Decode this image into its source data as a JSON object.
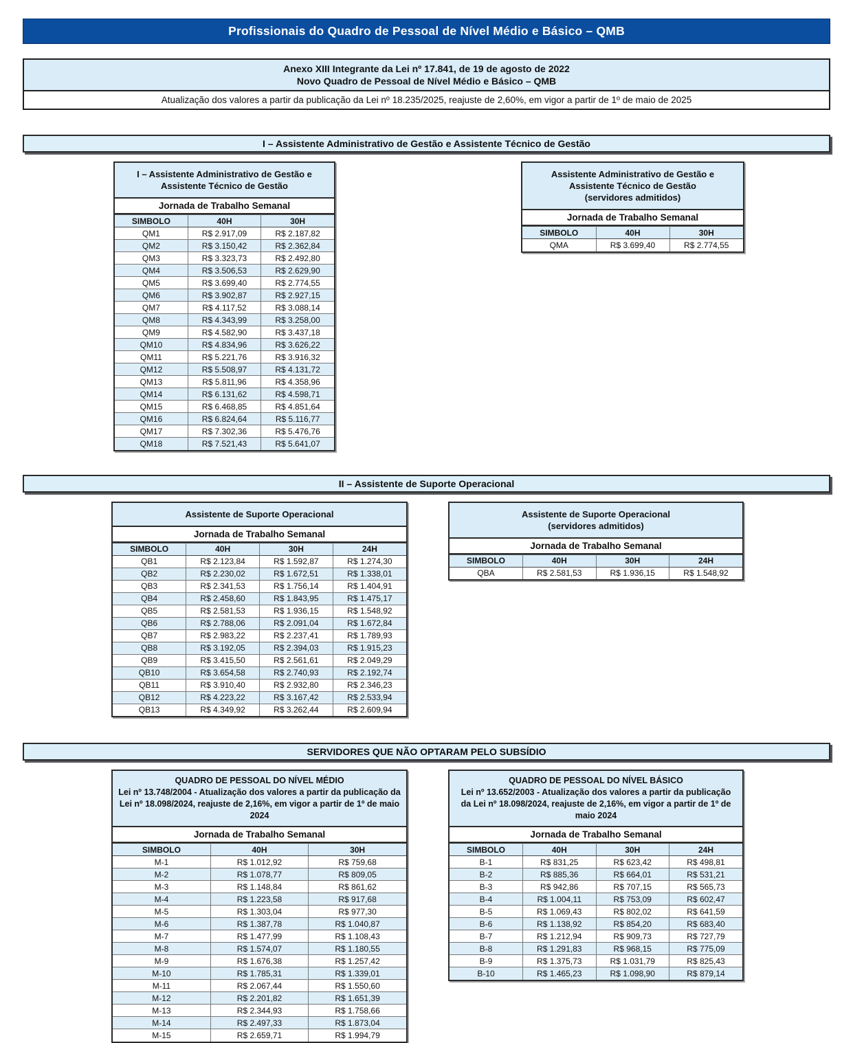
{
  "banner": {
    "title": "Profissionais do Quadro de Pessoal de Nível Médio e Básico – QMB"
  },
  "anexo": {
    "heading": "Anexo XIII Integrante da Lei nº 17.841, de 19 de agosto de 2022\nNovo Quadro de Pessoal de Nível Médio e Básico – QMB",
    "note": "Atualização dos valores a partir da publicação da Lei nº 18.235/2025, reajuste de 2,60%, em vigor a partir de 1º de maio de 2025"
  },
  "colors": {
    "banner_blue": "#0b4ea0",
    "light_blue": "#d9ecf8",
    "stripe_blue": "#ddeef8"
  },
  "section1": {
    "heading": "I – Assistente Administrativo de Gestão e Assistente Técnico de Gestão",
    "left_table": {
      "title": "I – Assistente Administrativo de Gestão e\nAssistente Técnico de Gestão",
      "subheader": "Jornada de Trabalho Semanal",
      "columns": [
        "SIMBOLO",
        "40H",
        "30H"
      ],
      "rows": [
        [
          "QM1",
          "R$ 2.917,09",
          "R$ 2.187,82"
        ],
        [
          "QM2",
          "R$ 3.150,42",
          "R$ 2.362,84"
        ],
        [
          "QM3",
          "R$ 3.323,73",
          "R$ 2.492,80"
        ],
        [
          "QM4",
          "R$ 3.506,53",
          "R$ 2.629,90"
        ],
        [
          "QM5",
          "R$ 3.699,40",
          "R$ 2.774,55"
        ],
        [
          "QM6",
          "R$ 3.902,87",
          "R$ 2.927,15"
        ],
        [
          "QM7",
          "R$ 4.117,52",
          "R$ 3.088,14"
        ],
        [
          "QM8",
          "R$ 4.343,99",
          "R$ 3.258,00"
        ],
        [
          "QM9",
          "R$ 4.582,90",
          "R$ 3.437,18"
        ],
        [
          "QM10",
          "R$ 4.834,96",
          "R$ 3.626,22"
        ],
        [
          "QM11",
          "R$ 5.221,76",
          "R$ 3.916,32"
        ],
        [
          "QM12",
          "R$ 5.508,97",
          "R$ 4.131,72"
        ],
        [
          "QM13",
          "R$ 5.811,96",
          "R$ 4.358,96"
        ],
        [
          "QM14",
          "R$ 6.131,62",
          "R$ 4.598,71"
        ],
        [
          "QM15",
          "R$ 6.468,85",
          "R$ 4.851,64"
        ],
        [
          "QM16",
          "R$ 6.824,64",
          "R$ 5.116,77"
        ],
        [
          "QM17",
          "R$ 7.302,36",
          "R$ 5.476,76"
        ],
        [
          "QM18",
          "R$ 7.521,43",
          "R$ 5.641,07"
        ]
      ]
    },
    "right_table": {
      "title": "Assistente Administrativo de Gestão e\nAssistente Técnico de Gestão\n(servidores admitidos)",
      "subheader": "Jornada de Trabalho Semanal",
      "columns": [
        "SIMBOLO",
        "40H",
        "30H"
      ],
      "rows": [
        [
          "QMA",
          "R$ 3.699,40",
          "R$ 2.774,55"
        ]
      ]
    }
  },
  "section2": {
    "heading": "II – Assistente de Suporte Operacional",
    "left_table": {
      "title": "Assistente de Suporte Operacional",
      "subheader": "Jornada de Trabalho Semanal",
      "columns": [
        "SIMBOLO",
        "40H",
        "30H",
        "24H"
      ],
      "rows": [
        [
          "QB1",
          "R$ 2.123,84",
          "R$ 1.592,87",
          "R$ 1.274,30"
        ],
        [
          "QB2",
          "R$ 2.230,02",
          "R$ 1.672,51",
          "R$ 1.338,01"
        ],
        [
          "QB3",
          "R$ 2.341,53",
          "R$ 1.756,14",
          "R$ 1.404,91"
        ],
        [
          "QB4",
          "R$ 2.458,60",
          "R$ 1.843,95",
          "R$ 1.475,17"
        ],
        [
          "QB5",
          "R$ 2.581,53",
          "R$ 1.936,15",
          "R$ 1.548,92"
        ],
        [
          "QB6",
          "R$ 2.788,06",
          "R$ 2.091,04",
          "R$ 1.672,84"
        ],
        [
          "QB7",
          "R$ 2.983,22",
          "R$ 2.237,41",
          "R$ 1.789,93"
        ],
        [
          "QB8",
          "R$ 3.192,05",
          "R$ 2.394,03",
          "R$ 1.915,23"
        ],
        [
          "QB9",
          "R$ 3.415,50",
          "R$ 2.561,61",
          "R$ 2.049,29"
        ],
        [
          "QB10",
          "R$ 3.654,58",
          "R$ 2.740,93",
          "R$ 2.192,74"
        ],
        [
          "QB11",
          "R$ 3.910,40",
          "R$ 2.932,80",
          "R$ 2.346,23"
        ],
        [
          "QB12",
          "R$ 4.223,22",
          "R$ 3.167,42",
          "R$ 2.533,94"
        ],
        [
          "QB13",
          "R$ 4.349,92",
          "R$ 3.262,44",
          "R$ 2.609,94"
        ]
      ]
    },
    "right_table": {
      "title": "Assistente de Suporte Operacional\n(servidores admitidos)",
      "subheader": "Jornada de Trabalho Semanal",
      "columns": [
        "SIMBOLO",
        "40H",
        "30H",
        "24H"
      ],
      "rows": [
        [
          "QBA",
          "R$ 2.581,53",
          "R$ 1.936,15",
          "R$ 1.548,92"
        ]
      ]
    }
  },
  "section3": {
    "heading": "SERVIDORES QUE NÃO OPTARAM PELO SUBSÍDIO",
    "left_table": {
      "title": "QUADRO DE PESSOAL DO NÍVEL MÉDIO\nLei nº 13.748/2004 - Atualização dos valores a partir da publicação da Lei nº 18.098/2024, reajuste de 2,16%, em vigor a partir de 1º de maio 2024",
      "subheader": "Jornada de Trabalho Semanal",
      "columns": [
        "SIMBOLO",
        "40H",
        "30H"
      ],
      "rows": [
        [
          "M-1",
          "R$ 1.012,92",
          "R$ 759,68"
        ],
        [
          "M-2",
          "R$ 1.078,77",
          "R$ 809,05"
        ],
        [
          "M-3",
          "R$ 1.148,84",
          "R$ 861,62"
        ],
        [
          "M-4",
          "R$ 1.223,58",
          "R$ 917,68"
        ],
        [
          "M-5",
          "R$ 1.303,04",
          "R$ 977,30"
        ],
        [
          "M-6",
          "R$ 1.387,78",
          "R$ 1.040,87"
        ],
        [
          "M-7",
          "R$ 1.477,99",
          "R$ 1.108,43"
        ],
        [
          "M-8",
          "R$ 1.574,07",
          "R$ 1.180,55"
        ],
        [
          "M-9",
          "R$ 1.676,38",
          "R$ 1.257,42"
        ],
        [
          "M-10",
          "R$ 1.785,31",
          "R$ 1.339,01"
        ],
        [
          "M-11",
          "R$ 2.067,44",
          "R$ 1.550,60"
        ],
        [
          "M-12",
          "R$ 2.201,82",
          "R$ 1.651,39"
        ],
        [
          "M-13",
          "R$ 2.344,93",
          "R$ 1.758,66"
        ],
        [
          "M-14",
          "R$ 2.497,33",
          "R$ 1.873,04"
        ],
        [
          "M-15",
          "R$ 2.659,71",
          "R$ 1.994,79"
        ]
      ]
    },
    "right_table": {
      "title": "QUADRO DE PESSOAL DO NÍVEL BÁSICO\nLei nº 13.652/2003 - Atualização dos valores a partir da publicação da Lei nº 18.098/2024, reajuste de 2,16%, em vigor a partir de 1º de maio 2024",
      "subheader": "Jornada de Trabalho Semanal",
      "columns": [
        "SIMBOLO",
        "40H",
        "30H",
        "24H"
      ],
      "rows": [
        [
          "B-1",
          "R$ 831,25",
          "R$ 623,42",
          "R$ 498,81"
        ],
        [
          "B-2",
          "R$ 885,36",
          "R$ 664,01",
          "R$ 531,21"
        ],
        [
          "B-3",
          "R$ 942,86",
          "R$ 707,15",
          "R$ 565,73"
        ],
        [
          "B-4",
          "R$ 1.004,11",
          "R$ 753,09",
          "R$ 602,47"
        ],
        [
          "B-5",
          "R$ 1.069,43",
          "R$ 802,02",
          "R$ 641,59"
        ],
        [
          "B-6",
          "R$ 1.138,92",
          "R$ 854,20",
          "R$ 683,40"
        ],
        [
          "B-7",
          "R$ 1.212,94",
          "R$ 909,73",
          "R$ 727,79"
        ],
        [
          "B-8",
          "R$ 1.291,83",
          "R$ 968,15",
          "R$ 775,09"
        ],
        [
          "B-9",
          "R$ 1.375,73",
          "R$ 1.031,79",
          "R$ 825,43"
        ],
        [
          "B-10",
          "R$ 1.465,23",
          "R$ 1.098,90",
          "R$ 879,14"
        ]
      ]
    }
  }
}
